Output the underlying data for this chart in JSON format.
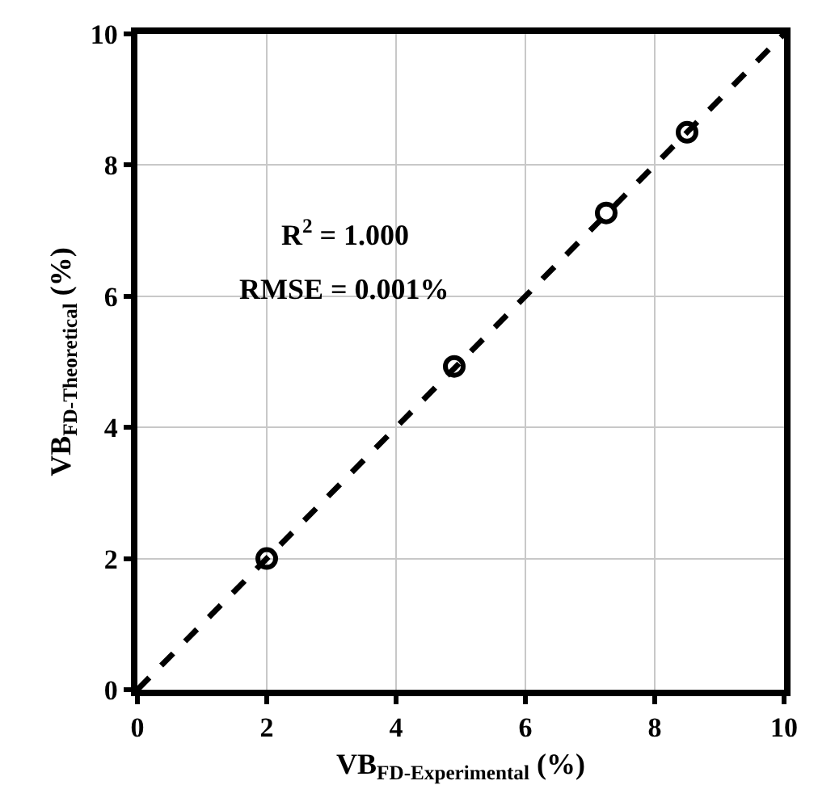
{
  "chart_data": {
    "type": "scatter",
    "xlabel": "VB$_{FD-Experimental}$ (%)",
    "ylabel": "VB$_{FD-Theoretical}$ (%)",
    "series": [
      {
        "color": "#000000",
        "marker": "circle",
        "x": [
          2,
          4.9,
          7.25,
          8.5
        ],
        "values": [
          2,
          4.93,
          7.27,
          8.5
        ]
      },
      {
        "type": "line",
        "color": "#000000",
        "line_style": "dashed",
        "marker": "none",
        "x": [
          0,
          10
        ],
        "values": [
          0,
          10
        ]
      }
    ],
    "annotations": [
      "R$^{2}$ = 1.000",
      "RMSE = 0.001%"
    ],
    "xlim": [
      0,
      10
    ],
    "ylim": [
      0,
      10
    ],
    "xticks": [
      0,
      2,
      4,
      6,
      8,
      10
    ],
    "yticks": [
      0,
      2,
      4,
      6,
      8,
      10
    ],
    "grid": true
  }
}
